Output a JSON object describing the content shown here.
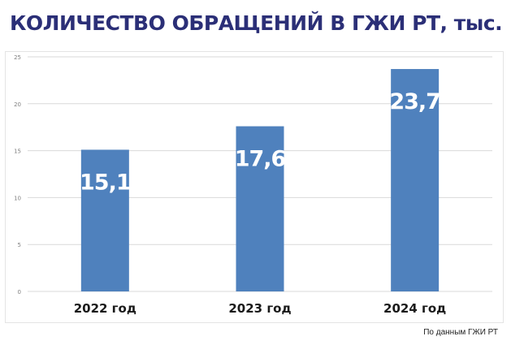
{
  "title": "КОЛИЧЕСТВО ОБРАЩЕНИЙ В ГЖИ РТ, тыс.",
  "source": "По данным ГЖИ РТ",
  "colors": {
    "title": "#2b2f77",
    "bar": "#4f81bd",
    "bar_label": "#ffffff",
    "axis_text": "#7f7f7f",
    "category_text": "#1a1a1a",
    "grid": "#d9d9d9"
  },
  "chart_data": {
    "type": "bar",
    "categories": [
      "2022 год",
      "2023 год",
      "2024 год"
    ],
    "values": [
      15.1,
      17.6,
      23.7
    ],
    "value_labels": [
      "15,1",
      "17,6",
      "23,7"
    ],
    "ylim": [
      0,
      25
    ],
    "yticks": [
      0,
      5,
      10,
      15,
      20,
      25
    ],
    "grid": true,
    "legend": "none"
  }
}
